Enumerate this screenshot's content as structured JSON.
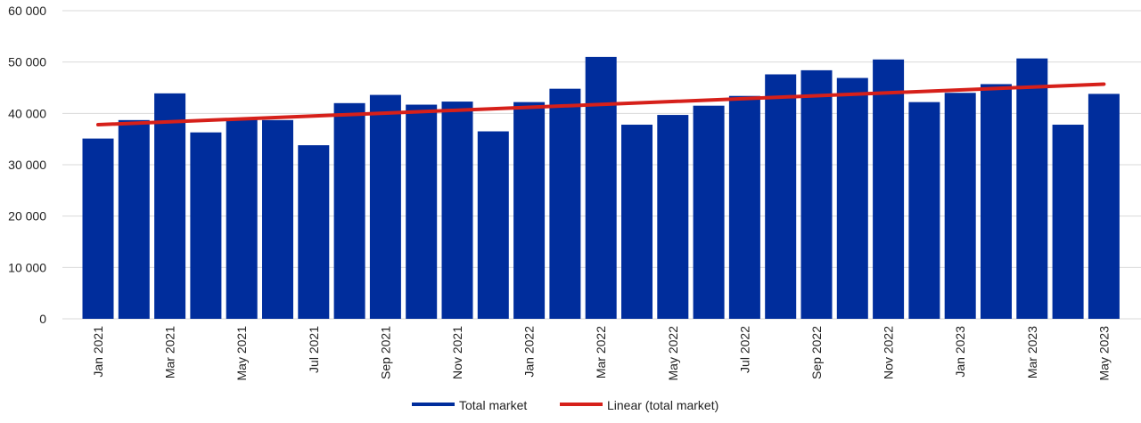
{
  "chart_data": {
    "type": "bar",
    "title": "",
    "xlabel": "",
    "ylabel": "",
    "ylim": [
      0,
      60000
    ],
    "y_ticks": [
      0,
      10000,
      20000,
      30000,
      40000,
      50000,
      60000
    ],
    "y_tick_labels": [
      "0",
      "10 000",
      "20 000",
      "30 000",
      "40 000",
      "50 000",
      "60 000"
    ],
    "grid": true,
    "legend_position": "bottom",
    "categories": [
      "Jan 2021",
      "Feb 2021",
      "Mar 2021",
      "Apr 2021",
      "May 2021",
      "Jun 2021",
      "Jul 2021",
      "Aug 2021",
      "Sep 2021",
      "Oct 2021",
      "Nov 2021",
      "Dec 2021",
      "Jan 2022",
      "Feb 2022",
      "Mar 2022",
      "Apr 2022",
      "May 2022",
      "Jun 2022",
      "Jul 2022",
      "Aug 2022",
      "Sep 2022",
      "Oct 2022",
      "Nov 2022",
      "Dec 2022",
      "Jan 2023",
      "Feb 2023",
      "Mar 2023",
      "Apr 2023",
      "May 2023"
    ],
    "x_tick_labels_shown": [
      "Jan 2021",
      "",
      "Mar 2021",
      "",
      "May 2021",
      "",
      "Jul 2021",
      "",
      "Sep 2021",
      "",
      "Nov 2021",
      "",
      "Jan 2022",
      "",
      "Mar 2022",
      "",
      "May 2022",
      "",
      "Jul 2022",
      "",
      "Sep 2022",
      "",
      "Nov 2022",
      "",
      "Jan 2023",
      "",
      "Mar 2023",
      "",
      "May 2023"
    ],
    "series": [
      {
        "name": "Total market",
        "type": "bar",
        "color": "#002d9c",
        "values": [
          35100,
          38700,
          43900,
          36300,
          38900,
          38700,
          33800,
          42000,
          43600,
          41700,
          42300,
          36500,
          42200,
          44800,
          51000,
          37800,
          39700,
          41500,
          43400,
          47600,
          48400,
          46900,
          50500,
          42200,
          44000,
          45700,
          50700,
          37800,
          43800
        ]
      },
      {
        "name": "Linear (total market)",
        "type": "line",
        "color": "#d6201a",
        "start": 37800,
        "end": 45700
      }
    ]
  }
}
